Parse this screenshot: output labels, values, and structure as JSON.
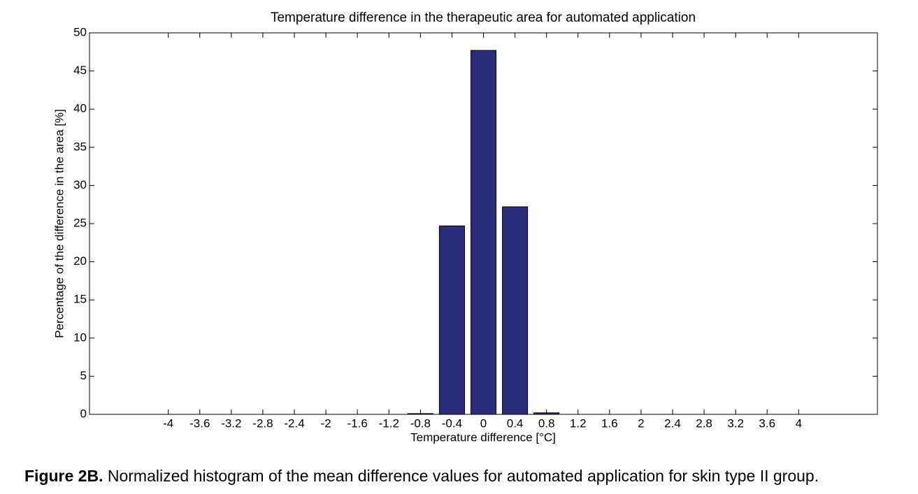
{
  "chart_data": {
    "type": "bar",
    "title": "Temperature difference in the therapeutic area  for automated application",
    "x_label": "Temperature difference [°C]",
    "y_label": "Percentage of the difference in the area [%]",
    "x": [
      -4,
      -3.6,
      -3.2,
      -2.8,
      -2.4,
      -2,
      -1.6,
      -1.2,
      -0.8,
      -0.4,
      0,
      0.4,
      0.8,
      1.2,
      1.6,
      2,
      2.4,
      2.8,
      3.2,
      3.6,
      4
    ],
    "values": [
      0,
      0,
      0,
      0,
      0,
      0,
      0,
      0,
      0.1,
      24.7,
      47.7,
      27.2,
      0.2,
      0,
      0,
      0,
      0,
      0,
      0,
      0,
      0
    ],
    "color": "#2b2d7c",
    "xlim": [
      -5,
      5
    ],
    "xticks": [
      -4,
      -3.6,
      -3.2,
      -2.8,
      -2.4,
      -2,
      -1.6,
      -1.2,
      -0.8,
      -0.4,
      0,
      0.4,
      0.8,
      1.2,
      1.6,
      2,
      2.4,
      2.8,
      3.2,
      3.6,
      4
    ],
    "ylim": [
      0,
      50
    ],
    "yticks": [
      0,
      5,
      10,
      15,
      20,
      25,
      30,
      35,
      40,
      45,
      50
    ],
    "grid": false
  },
  "caption": {
    "label": "Figure 2B.",
    "text": "Normalized histogram of the mean difference values for automated application for skin type II group."
  }
}
